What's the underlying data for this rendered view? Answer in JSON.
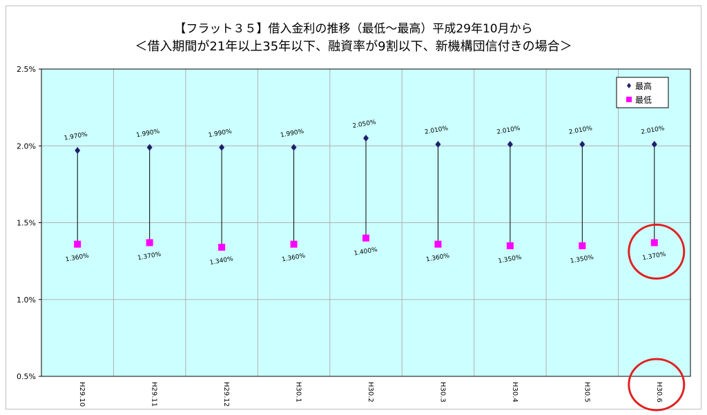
{
  "chart_data": {
    "type": "line",
    "title": "【フラット３５】借入金利の推移（最低～最高）平成29年10月から",
    "subtitle": "＜借入期間が21年以上35年以下、融資率が9割以下、新機構団信付きの場合＞",
    "categories": [
      "H29.10",
      "H29.11",
      "H29.12",
      "H30.1",
      "H30.2",
      "H30.3",
      "H30.4",
      "H30.5",
      "H30.6"
    ],
    "series": [
      {
        "name": "最高",
        "values": [
          1.97,
          1.99,
          1.99,
          1.99,
          2.05,
          2.01,
          2.01,
          2.01,
          2.01
        ],
        "labels": [
          "1.970%",
          "1.990%",
          "1.990%",
          "1.990%",
          "2.050%",
          "2.010%",
          "2.010%",
          "2.010%",
          "2.010%"
        ],
        "color": "#1f1f6e",
        "marker": "diamond"
      },
      {
        "name": "最低",
        "values": [
          1.36,
          1.37,
          1.34,
          1.36,
          1.4,
          1.36,
          1.35,
          1.35,
          1.37
        ],
        "labels": [
          "1.360%",
          "1.370%",
          "1.340%",
          "1.360%",
          "1.400%",
          "1.360%",
          "1.350%",
          "1.350%",
          "1.370%"
        ],
        "color": "#ff00ff",
        "marker": "square"
      }
    ],
    "yticks": [
      "0.5%",
      "1.0%",
      "1.5%",
      "2.0%",
      "2.5%"
    ],
    "ylim": [
      0.5,
      2.5
    ],
    "grid": true,
    "plot_background": "#ccffff",
    "legend": "top-right",
    "highlight_circles": "last category (H30.6): around minimum label and x tick label",
    "highlight_color": "#e02020"
  }
}
